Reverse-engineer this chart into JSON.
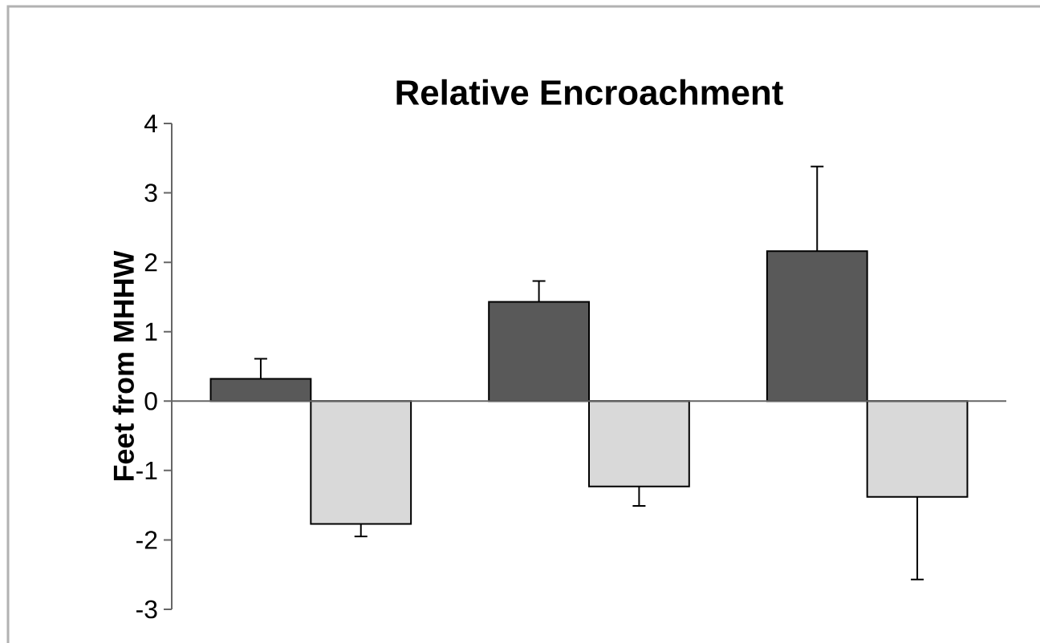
{
  "chart_data": {
    "type": "bar",
    "title": "Relative Encroachment",
    "ylabel": "Feet from MHHW",
    "categories": [
      null,
      null,
      null
    ],
    "series": [
      {
        "color": "#595959",
        "values": [
          0.32,
          1.43,
          2.16
        ],
        "errors": [
          [
            0.32,
            0.61
          ],
          [
            1.43,
            1.73
          ],
          [
            2.16,
            3.38
          ]
        ]
      },
      {
        "color": "#d9d9d9",
        "values": [
          -1.77,
          -1.23,
          -1.38
        ],
        "errors": [
          [
            -1.95,
            -1.77
          ],
          [
            -1.51,
            -1.23
          ],
          [
            -2.57,
            -1.38
          ]
        ]
      }
    ],
    "ylim": [
      -3,
      4
    ],
    "yticks": [
      -3,
      -2,
      -1,
      0,
      1,
      2,
      3,
      4
    ]
  }
}
